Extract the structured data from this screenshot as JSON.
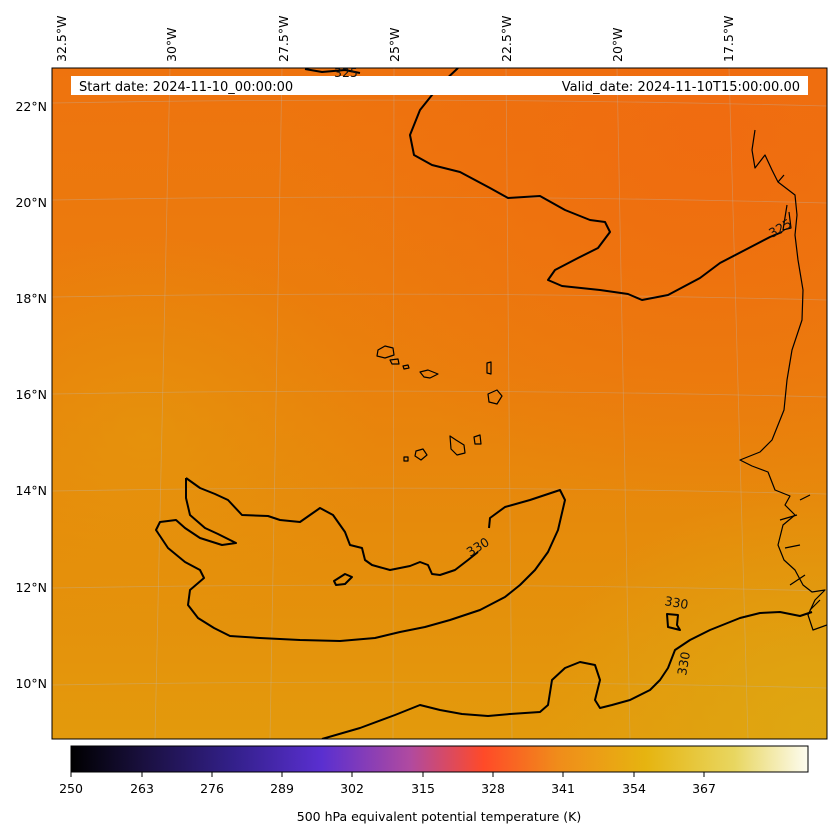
{
  "map": {
    "header": {
      "start_date": "Start date: 2024-11-10_00:00:00",
      "valid_date": "Valid_date: 2024-11-10T15:00:00.00"
    },
    "lon_ticks": [
      "32.5°W",
      "30°W",
      "27.5°W",
      "25°W",
      "22.5°W",
      "20°W",
      "17.5°W"
    ],
    "lat_ticks": [
      "22°N",
      "20°N",
      "18°N",
      "16°N",
      "14°N",
      "12°N",
      "10°N"
    ],
    "contour_labels": [
      "325",
      "325",
      "330",
      "330",
      "330"
    ],
    "colorbar": {
      "ticks": [
        "250",
        "263",
        "276",
        "289",
        "302",
        "315",
        "328",
        "341",
        "354",
        "367"
      ],
      "label": "500 hPa equivalent potential temperature (K)",
      "colors": [
        "#000000",
        "#2a1a6a",
        "#5a2fd0",
        "#b04aa0",
        "#ff4a28",
        "#f08c1a",
        "#e6b410",
        "#e8d250",
        "#fdfcf0"
      ]
    },
    "field_colors": {
      "base": "#e9820c",
      "north_warm": "#ee700f",
      "south_yellow": "#e2a00c"
    }
  }
}
